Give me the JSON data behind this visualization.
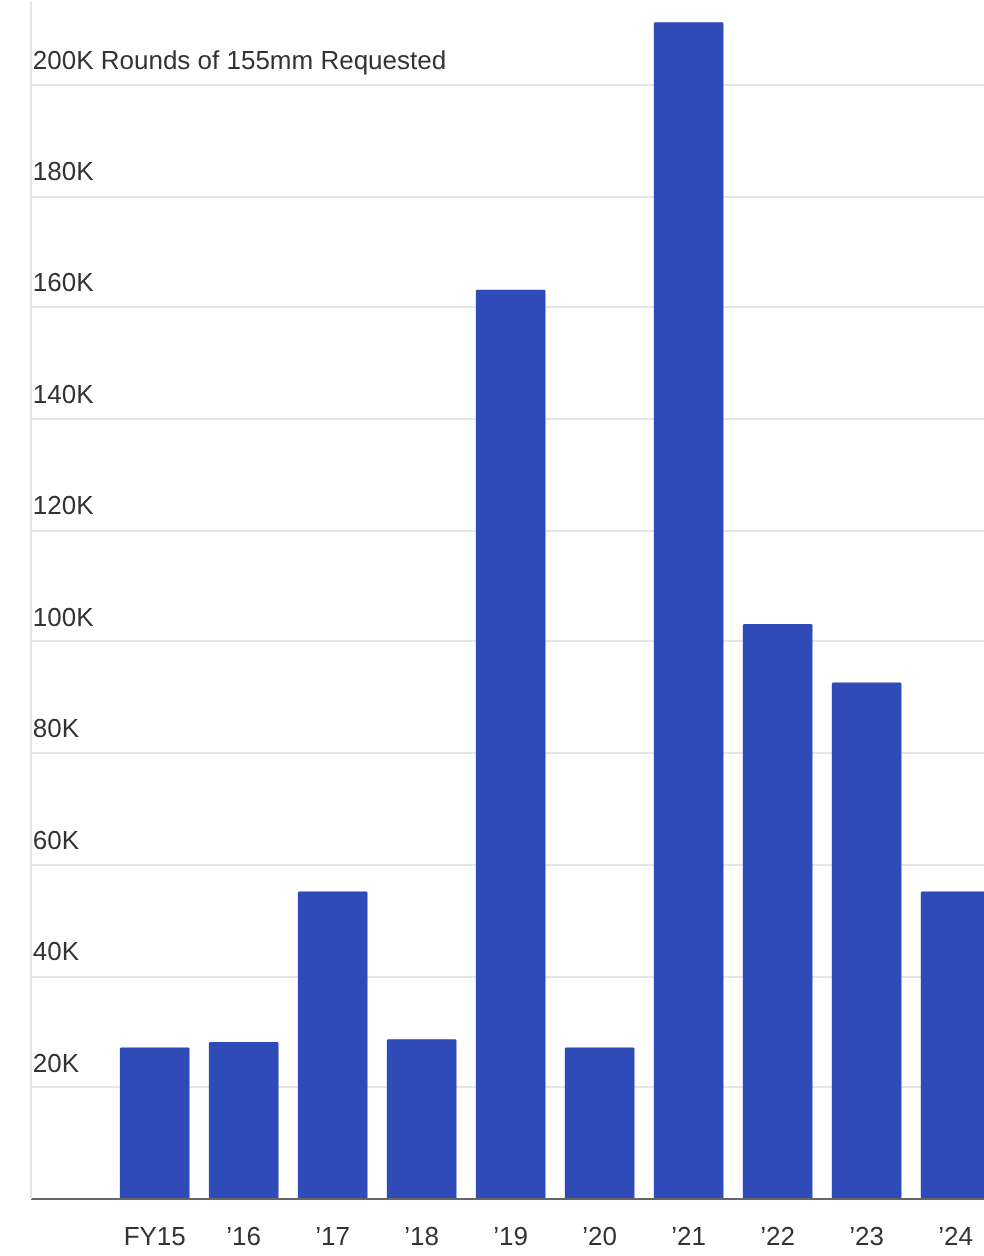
{
  "chart_data": {
    "type": "bar",
    "categories": [
      "FY15",
      "’16",
      "’17",
      "’18",
      "’19",
      "’20",
      "’21",
      "’22",
      "’23",
      "’24"
    ],
    "values": [
      27000,
      28000,
      55000,
      28500,
      163000,
      27000,
      211000,
      103000,
      92500,
      55000
    ],
    "color": "#2f4bb8",
    "ylim": [
      0,
      215000
    ],
    "yticks": [
      {
        "value": 20000,
        "label": "20K"
      },
      {
        "value": 40000,
        "label": "40K"
      },
      {
        "value": 60000,
        "label": "60K"
      },
      {
        "value": 80000,
        "label": "80K"
      },
      {
        "value": 100000,
        "label": "100K"
      },
      {
        "value": 120000,
        "label": "120K"
      },
      {
        "value": 140000,
        "label": "140K"
      },
      {
        "value": 160000,
        "label": "160K"
      },
      {
        "value": 180000,
        "label": "180K"
      },
      {
        "value": 200000,
        "label": "200K Rounds of 155mm Requested"
      }
    ],
    "grid": "y"
  }
}
